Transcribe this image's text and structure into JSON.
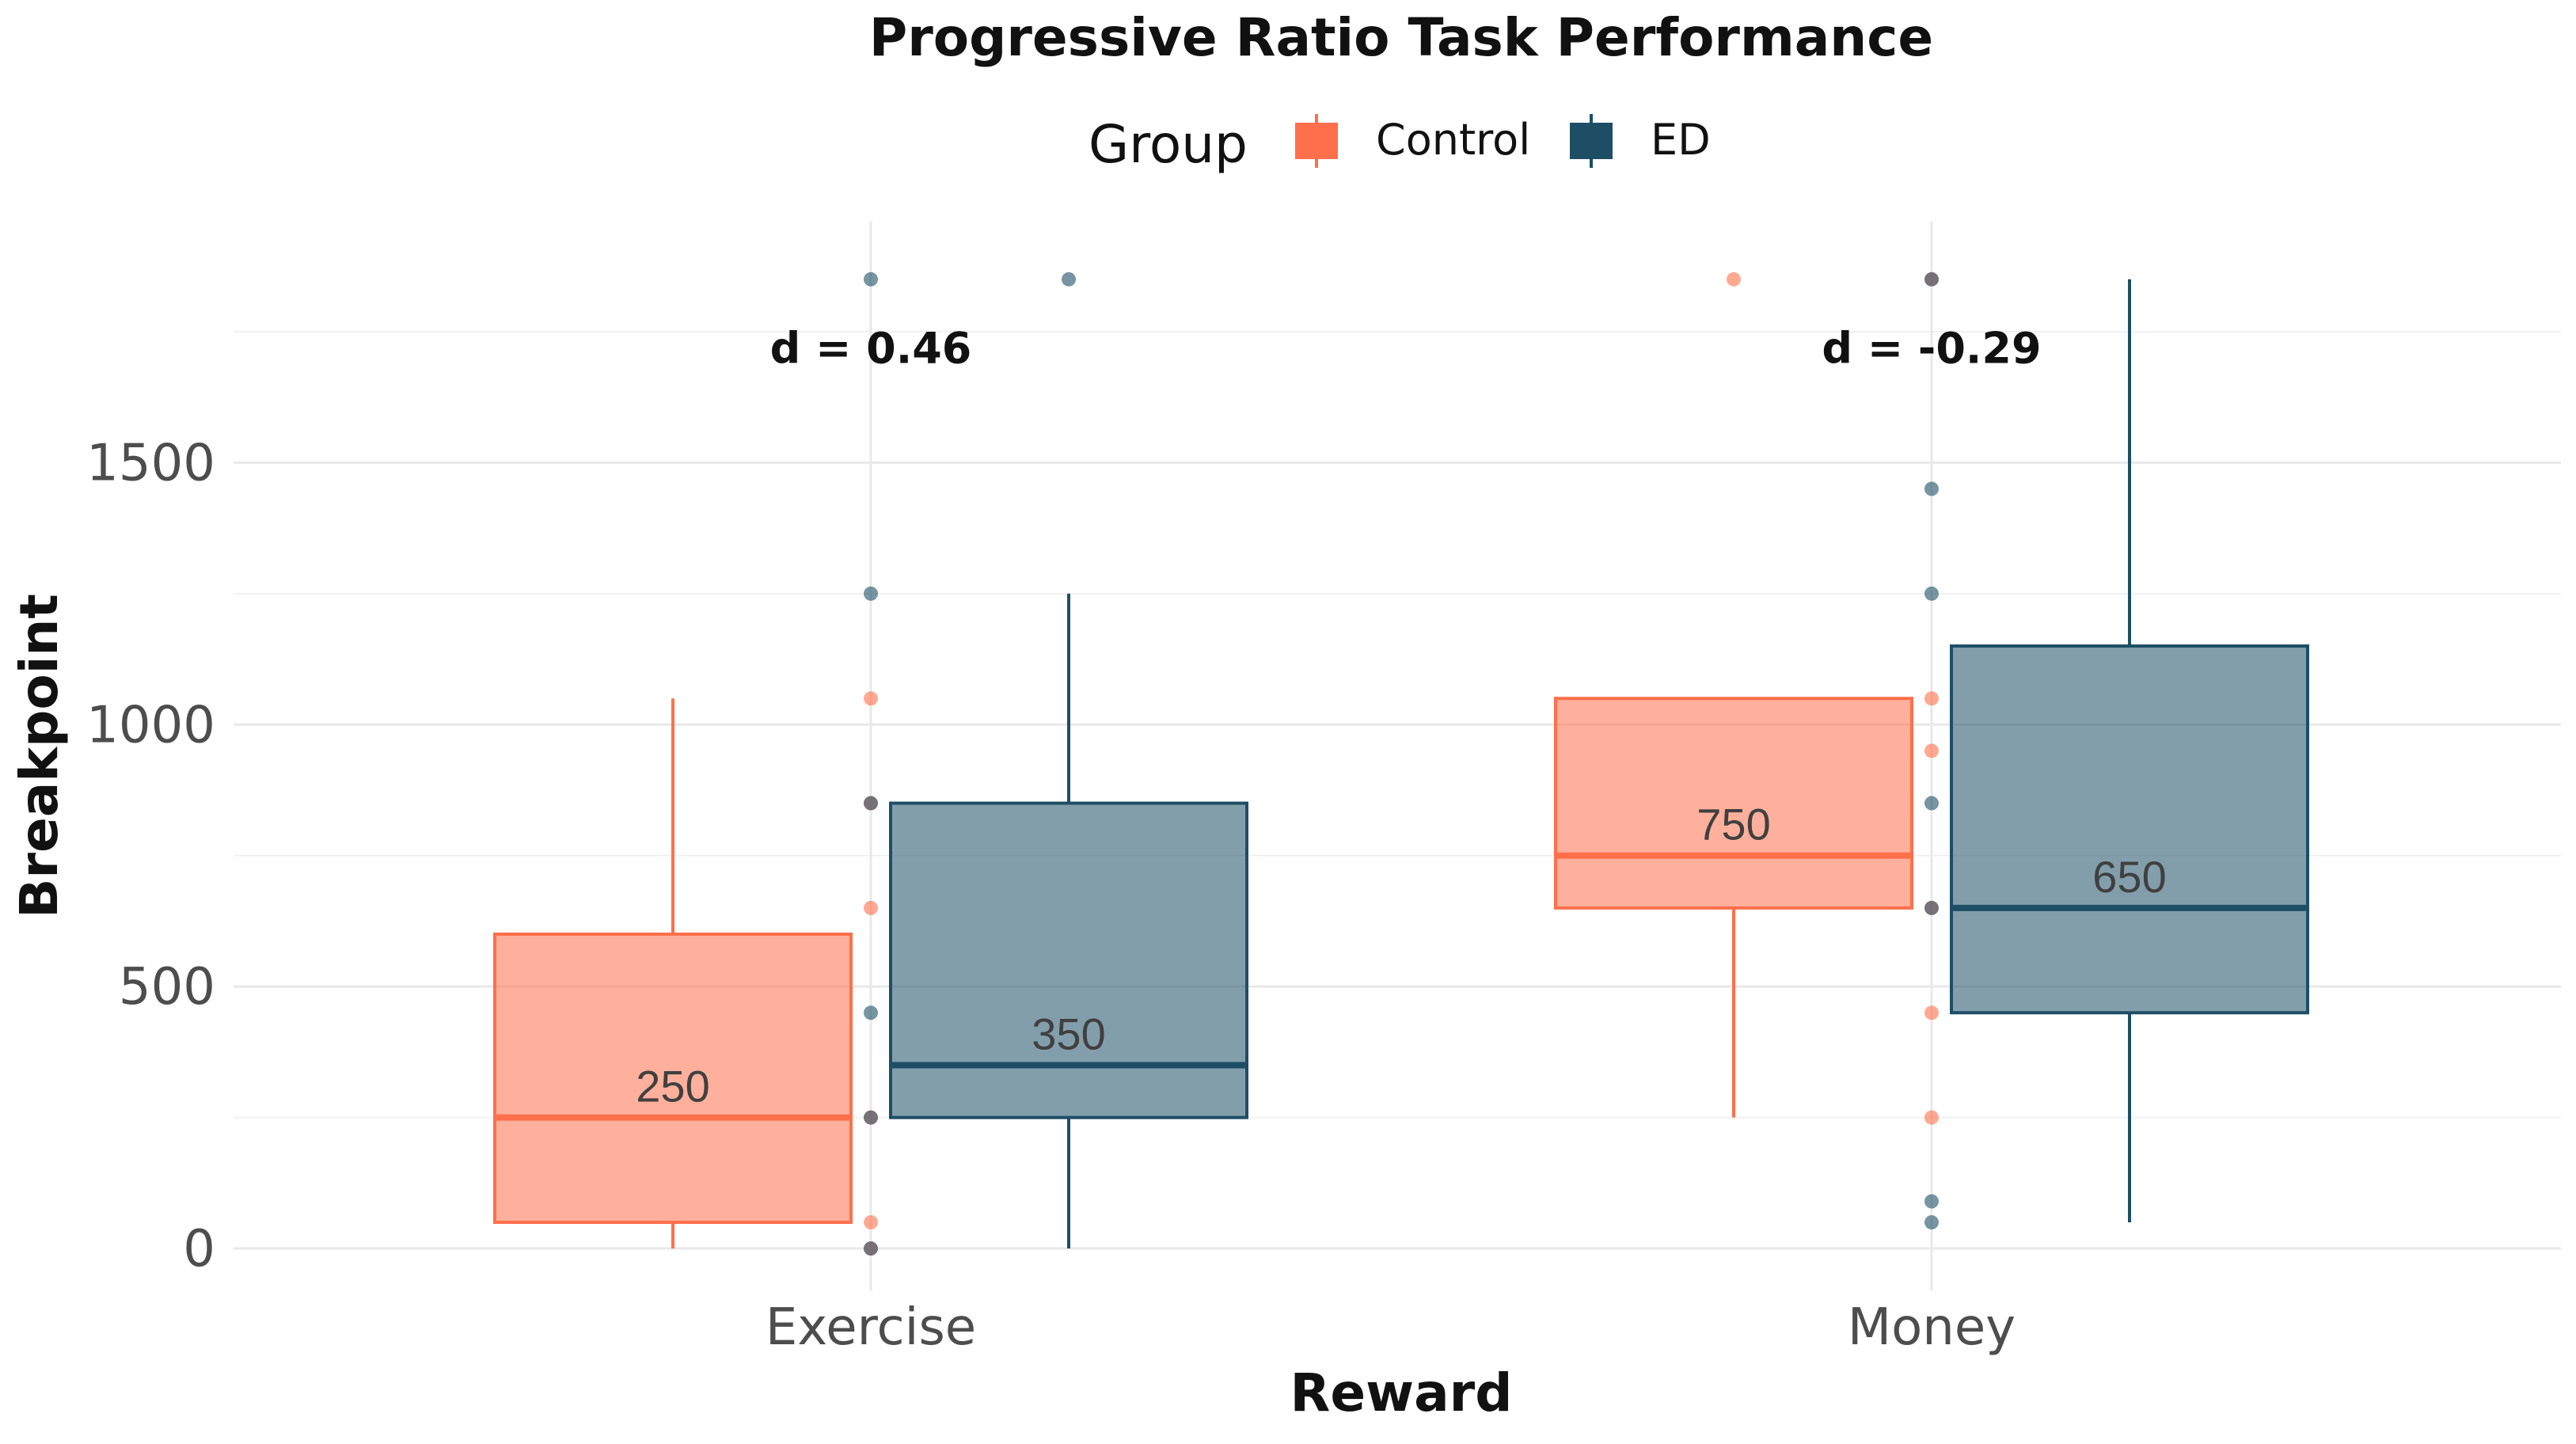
{
  "chart_data": {
    "type": "box",
    "title": "Progressive Ratio Task Performance",
    "xlabel": "Reward",
    "ylabel": "Breakpoint",
    "categories": [
      "Exercise",
      "Money"
    ],
    "ylim": [
      -80,
      1960
    ],
    "yticks": [
      0,
      500,
      1000,
      1500
    ],
    "ytick_labels": [
      "0",
      "500",
      "1000",
      "1500"
    ],
    "grid": true,
    "legend": {
      "title": "Group",
      "position": "top",
      "entries": [
        {
          "label": "Control",
          "color": "#FF6F4B"
        },
        {
          "label": "ED",
          "color": "#1D4E66"
        }
      ]
    },
    "series": [
      {
        "name": "Control",
        "color": "#FF6F4B",
        "boxes": [
          {
            "category": "Exercise",
            "whisker_low": 0,
            "q1": 50,
            "median": 250,
            "q3": 600,
            "whisker_high": 1050,
            "median_label": "250"
          },
          {
            "category": "Money",
            "whisker_low": 250,
            "q1": 650,
            "median": 750,
            "q3": 1050,
            "whisker_high": 1050,
            "median_label": "750"
          }
        ],
        "outliers": [
          {
            "category": "Money",
            "y": 1850
          }
        ],
        "points": [
          {
            "category": "Exercise",
            "y": 1050
          },
          {
            "category": "Exercise",
            "y": 850
          },
          {
            "category": "Exercise",
            "y": 650
          },
          {
            "category": "Exercise",
            "y": 250
          },
          {
            "category": "Exercise",
            "y": 50
          },
          {
            "category": "Exercise",
            "y": 0
          },
          {
            "category": "Money",
            "y": 1850
          },
          {
            "category": "Money",
            "y": 1050
          },
          {
            "category": "Money",
            "y": 950
          },
          {
            "category": "Money",
            "y": 650
          },
          {
            "category": "Money",
            "y": 450
          },
          {
            "category": "Money",
            "y": 250
          }
        ]
      },
      {
        "name": "ED",
        "color": "#1D4E66",
        "boxes": [
          {
            "category": "Exercise",
            "whisker_low": 0,
            "q1": 250,
            "median": 350,
            "q3": 850,
            "whisker_high": 1250,
            "median_label": "350"
          },
          {
            "category": "Money",
            "whisker_low": 50,
            "q1": 450,
            "median": 650,
            "q3": 1150,
            "whisker_high": 1850,
            "median_label": "650"
          }
        ],
        "outliers": [
          {
            "category": "Exercise",
            "y": 1850
          }
        ],
        "points": [
          {
            "category": "Exercise",
            "y": 1850
          },
          {
            "category": "Exercise",
            "y": 1250
          },
          {
            "category": "Exercise",
            "y": 850
          },
          {
            "category": "Exercise",
            "y": 450
          },
          {
            "category": "Exercise",
            "y": 250
          },
          {
            "category": "Exercise",
            "y": 0
          },
          {
            "category": "Money",
            "y": 1850
          },
          {
            "category": "Money",
            "y": 1450
          },
          {
            "category": "Money",
            "y": 1250
          },
          {
            "category": "Money",
            "y": 850
          },
          {
            "category": "Money",
            "y": 650
          },
          {
            "category": "Money",
            "y": 90
          },
          {
            "category": "Money",
            "y": 50
          }
        ]
      }
    ],
    "annotations": [
      {
        "category": "Exercise",
        "y": 1690,
        "text": "d = 0.46"
      },
      {
        "category": "Money",
        "y": 1690,
        "text": "d = -0.29"
      }
    ]
  }
}
